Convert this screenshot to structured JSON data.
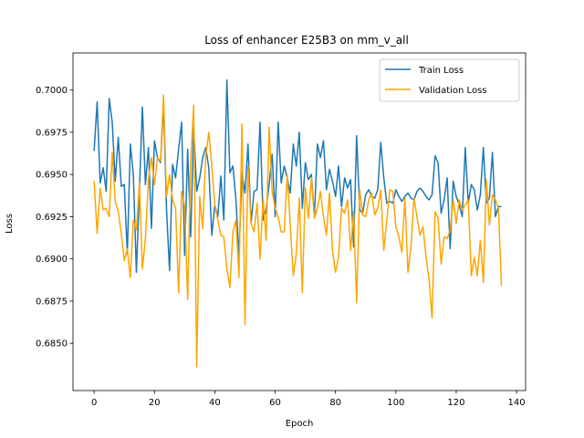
{
  "chart_data": {
    "type": "line",
    "title": "Loss of enhancer E25B3 on mm_v_all",
    "xlabel": "Epoch",
    "ylabel": "Loss",
    "xlim": [
      -7,
      143
    ],
    "ylim": [
      0.6822,
      0.7022
    ],
    "xticks": [
      0,
      20,
      40,
      60,
      80,
      100,
      120,
      140
    ],
    "yticks": [
      0.685,
      0.6875,
      0.69,
      0.6925,
      0.695,
      0.6975,
      0.7
    ],
    "ytick_labels": [
      "0.6850",
      "0.6875",
      "0.6900",
      "0.6925",
      "0.6950",
      "0.6975",
      "0.7000"
    ],
    "grid": false,
    "legend_position": "top-right",
    "series": [
      {
        "name": "Train Loss",
        "color": "#1f77b4",
        "values": [
          0.6964,
          0.6993,
          0.6945,
          0.6954,
          0.694,
          0.6995,
          0.6981,
          0.6946,
          0.6972,
          0.6943,
          0.6944,
          0.6903,
          0.6968,
          0.695,
          0.6892,
          0.694,
          0.699,
          0.6944,
          0.6966,
          0.6918,
          0.697,
          0.696,
          0.6957,
          0.6992,
          0.6929,
          0.6893,
          0.6956,
          0.6948,
          0.6965,
          0.6981,
          0.6902,
          0.6965,
          0.6913,
          0.6978,
          0.694,
          0.6948,
          0.696,
          0.6966,
          0.6954,
          0.6914,
          0.6932,
          0.6925,
          0.6949,
          0.6923,
          0.7006,
          0.6951,
          0.6955,
          0.6935,
          0.6902,
          0.6951,
          0.6939,
          0.6968,
          0.6921,
          0.694,
          0.6941,
          0.6981,
          0.6923,
          0.6929,
          0.6944,
          0.6962,
          0.6925,
          0.6981,
          0.6945,
          0.6955,
          0.6948,
          0.6939,
          0.6968,
          0.6955,
          0.6975,
          0.693,
          0.6957,
          0.6947,
          0.695,
          0.6925,
          0.6968,
          0.696,
          0.697,
          0.6941,
          0.6953,
          0.6946,
          0.6937,
          0.6955,
          0.6931,
          0.6948,
          0.6942,
          0.6947,
          0.6907,
          0.6973,
          0.6929,
          0.6927,
          0.6938,
          0.6941,
          0.6937,
          0.6936,
          0.6941,
          0.6969,
          0.6948,
          0.6933,
          0.6934,
          0.6933,
          0.6941,
          0.6937,
          0.6934,
          0.6937,
          0.6939,
          0.6936,
          0.6935,
          0.694,
          0.6942,
          0.694,
          0.6937,
          0.6935,
          0.6938,
          0.6961,
          0.6957,
          0.6927,
          0.6935,
          0.6948,
          0.6906,
          0.6946,
          0.6937,
          0.6932,
          0.6925,
          0.6966,
          0.6933,
          0.6944,
          0.6941,
          0.6929,
          0.6938,
          0.6966,
          0.6933,
          0.6936,
          0.6963,
          0.6925,
          0.6931,
          0.6931
        ]
      },
      {
        "name": "Validation Loss",
        "color": "#ffa500",
        "values": [
          0.6946,
          0.6915,
          0.6942,
          0.6929,
          0.693,
          0.6925,
          0.6963,
          0.6934,
          0.6928,
          0.6915,
          0.6899,
          0.6906,
          0.6889,
          0.6923,
          0.6917,
          0.6945,
          0.6894,
          0.6912,
          0.6947,
          0.696,
          0.6944,
          0.696,
          0.6958,
          0.6997,
          0.6937,
          0.695,
          0.6935,
          0.693,
          0.688,
          0.694,
          0.6931,
          0.6876,
          0.6957,
          0.6991,
          0.6836,
          0.6937,
          0.6918,
          0.6961,
          0.6975,
          0.6955,
          0.6932,
          0.6923,
          0.6914,
          0.6913,
          0.6894,
          0.6883,
          0.6916,
          0.6923,
          0.6889,
          0.698,
          0.6861,
          0.6955,
          0.6921,
          0.6916,
          0.6933,
          0.69,
          0.6936,
          0.6911,
          0.6978,
          0.694,
          0.693,
          0.6925,
          0.6916,
          0.6916,
          0.695,
          0.692,
          0.689,
          0.6903,
          0.6936,
          0.688,
          0.6942,
          0.6924,
          0.6948,
          0.6924,
          0.693,
          0.694,
          0.6925,
          0.6914,
          0.6939,
          0.6905,
          0.6892,
          0.6901,
          0.693,
          0.6927,
          0.6935,
          0.6905,
          0.6928,
          0.6874,
          0.6941,
          0.6926,
          0.6925,
          0.6935,
          0.6939,
          0.6926,
          0.693,
          0.6941,
          0.6905,
          0.6923,
          0.6941,
          0.694,
          0.6919,
          0.6913,
          0.6904,
          0.6936,
          0.6892,
          0.6907,
          0.6936,
          0.6925,
          0.6914,
          0.6919,
          0.6901,
          0.6888,
          0.6865,
          0.6928,
          0.6924,
          0.6897,
          0.6913,
          0.6912,
          0.6917,
          0.6935,
          0.6921,
          0.6935,
          0.6929,
          0.6932,
          0.6935,
          0.689,
          0.6901,
          0.689,
          0.6911,
          0.6886,
          0.6947,
          0.692,
          0.6938,
          0.6935,
          0.693,
          0.6884
        ]
      }
    ]
  }
}
